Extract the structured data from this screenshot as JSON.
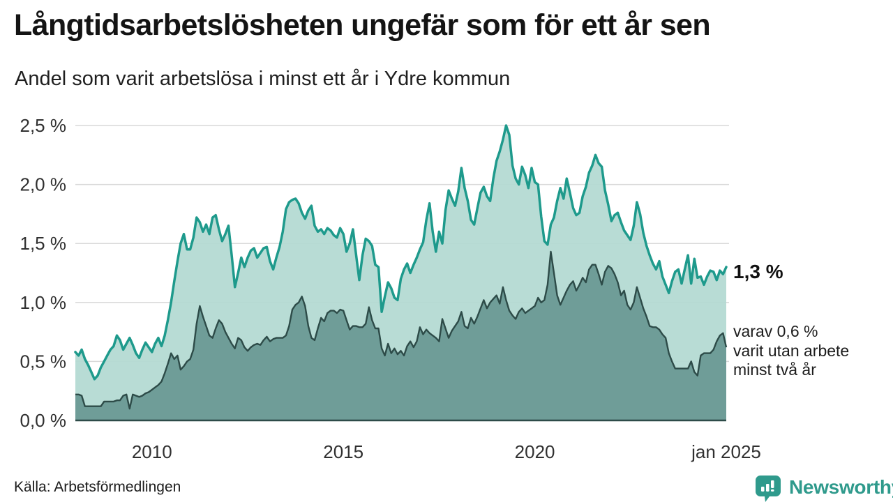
{
  "header": {
    "title": "Långtidsarbetslösheten ungefär som för ett år sen",
    "subtitle": "Andel som varit arbetslösa i minst ett år i Ydre kommun"
  },
  "annotations": {
    "value_main": "1,3 %",
    "detail_line1": "varav 0,6 %",
    "detail_line2": "varit utan arbete",
    "detail_line3": "minst två år"
  },
  "footer": {
    "source": "Källa: Arbetsförmedlingen",
    "brand": "Newsworthy"
  },
  "colors": {
    "line_total": "#1e9a8c",
    "fill_total": "#b4dad3",
    "fill_two_years": "#6c9b96",
    "stroke_two_years": "#2d4b48",
    "gridline": "#d9d9d9",
    "axis_text": "#303030",
    "brand_teal": "#2f9a8c"
  },
  "chart_data": {
    "type": "area",
    "title": "Långtidsarbetslösheten ungefär som för ett år sen",
    "subtitle": "Andel som varit arbetslösa i minst ett år i Ydre kommun",
    "unit": "%",
    "grid": true,
    "legend_position": "none",
    "x_range": [
      2008.0,
      2025.0
    ],
    "x_step_months": 1,
    "ylim": [
      0,
      2.6
    ],
    "yticks": [
      {
        "v": 0.0,
        "label": "0,0 %"
      },
      {
        "v": 0.5,
        "label": "0,5 %"
      },
      {
        "v": 1.0,
        "label": "1,0 %"
      },
      {
        "v": 1.5,
        "label": "1,5 %"
      },
      {
        "v": 2.0,
        "label": "2,0 %"
      },
      {
        "v": 2.5,
        "label": "2,5 %"
      }
    ],
    "xticks": [
      {
        "t": 2010,
        "label": "2010"
      },
      {
        "t": 2015,
        "label": "2015"
      },
      {
        "t": 2020,
        "label": "2020"
      },
      {
        "t": 2025,
        "label": "jan 2025"
      }
    ],
    "last_values": {
      "minst_ett_ar": 1.3,
      "minst_tva_ar": 0.6
    },
    "series": [
      {
        "name": "Arbetslösa minst ett år",
        "role": "total",
        "values": [
          0.58,
          0.55,
          0.6,
          0.52,
          0.47,
          0.41,
          0.35,
          0.38,
          0.45,
          0.5,
          0.55,
          0.6,
          0.63,
          0.72,
          0.68,
          0.6,
          0.65,
          0.7,
          0.64,
          0.57,
          0.53,
          0.6,
          0.66,
          0.62,
          0.58,
          0.65,
          0.7,
          0.63,
          0.72,
          0.85,
          1.0,
          1.18,
          1.35,
          1.5,
          1.58,
          1.45,
          1.45,
          1.55,
          1.72,
          1.68,
          1.6,
          1.66,
          1.58,
          1.72,
          1.74,
          1.62,
          1.52,
          1.58,
          1.65,
          1.4,
          1.13,
          1.25,
          1.38,
          1.3,
          1.38,
          1.44,
          1.46,
          1.38,
          1.42,
          1.46,
          1.47,
          1.35,
          1.28,
          1.38,
          1.47,
          1.6,
          1.79,
          1.85,
          1.87,
          1.88,
          1.84,
          1.76,
          1.71,
          1.78,
          1.82,
          1.65,
          1.6,
          1.62,
          1.58,
          1.63,
          1.61,
          1.57,
          1.55,
          1.63,
          1.58,
          1.43,
          1.5,
          1.62,
          1.4,
          1.19,
          1.4,
          1.54,
          1.52,
          1.48,
          1.32,
          1.3,
          0.92,
          1.05,
          1.17,
          1.12,
          1.04,
          1.02,
          1.2,
          1.28,
          1.33,
          1.25,
          1.32,
          1.38,
          1.45,
          1.51,
          1.7,
          1.84,
          1.6,
          1.43,
          1.6,
          1.5,
          1.78,
          1.95,
          1.88,
          1.82,
          1.94,
          2.14,
          1.97,
          1.86,
          1.7,
          1.66,
          1.8,
          1.93,
          1.98,
          1.9,
          1.86,
          2.05,
          2.2,
          2.28,
          2.38,
          2.5,
          2.42,
          2.16,
          2.05,
          2.0,
          2.15,
          2.08,
          1.97,
          2.14,
          2.02,
          2.0,
          1.73,
          1.52,
          1.49,
          1.66,
          1.72,
          1.86,
          1.97,
          1.88,
          2.05,
          1.93,
          1.8,
          1.74,
          1.76,
          1.9,
          1.98,
          2.1,
          2.16,
          2.25,
          2.18,
          2.15,
          1.95,
          1.83,
          1.69,
          1.74,
          1.76,
          1.68,
          1.61,
          1.57,
          1.53,
          1.65,
          1.85,
          1.75,
          1.59,
          1.48,
          1.4,
          1.33,
          1.28,
          1.35,
          1.22,
          1.15,
          1.08,
          1.18,
          1.26,
          1.28,
          1.16,
          1.28,
          1.4,
          1.16,
          1.37,
          1.21,
          1.22,
          1.15,
          1.22,
          1.27,
          1.26,
          1.19,
          1.27,
          1.24,
          1.3
        ]
      },
      {
        "name": "varav utan arbete minst två år",
        "role": "subset",
        "values": [
          0.22,
          0.22,
          0.21,
          0.12,
          0.12,
          0.12,
          0.12,
          0.12,
          0.12,
          0.16,
          0.16,
          0.16,
          0.16,
          0.17,
          0.17,
          0.21,
          0.22,
          0.1,
          0.22,
          0.21,
          0.2,
          0.21,
          0.23,
          0.24,
          0.26,
          0.28,
          0.3,
          0.33,
          0.4,
          0.48,
          0.57,
          0.52,
          0.55,
          0.43,
          0.46,
          0.5,
          0.52,
          0.6,
          0.82,
          0.97,
          0.88,
          0.8,
          0.72,
          0.7,
          0.78,
          0.85,
          0.82,
          0.75,
          0.7,
          0.65,
          0.61,
          0.7,
          0.68,
          0.62,
          0.59,
          0.62,
          0.64,
          0.65,
          0.64,
          0.68,
          0.71,
          0.67,
          0.69,
          0.7,
          0.7,
          0.7,
          0.72,
          0.8,
          0.94,
          0.98,
          1.0,
          1.05,
          0.97,
          0.8,
          0.7,
          0.68,
          0.78,
          0.87,
          0.84,
          0.91,
          0.93,
          0.93,
          0.91,
          0.94,
          0.93,
          0.85,
          0.77,
          0.8,
          0.8,
          0.79,
          0.79,
          0.82,
          0.96,
          0.85,
          0.78,
          0.78,
          0.61,
          0.55,
          0.65,
          0.57,
          0.61,
          0.56,
          0.59,
          0.55,
          0.63,
          0.67,
          0.62,
          0.67,
          0.79,
          0.73,
          0.77,
          0.74,
          0.72,
          0.7,
          0.67,
          0.86,
          0.78,
          0.7,
          0.76,
          0.8,
          0.84,
          0.92,
          0.8,
          0.78,
          0.87,
          0.82,
          0.88,
          0.95,
          1.02,
          0.95,
          1.0,
          1.03,
          1.06,
          0.99,
          1.13,
          1.02,
          0.93,
          0.89,
          0.86,
          0.92,
          0.95,
          0.91,
          0.93,
          0.95,
          0.97,
          1.04,
          1.0,
          1.02,
          1.15,
          1.43,
          1.25,
          1.06,
          0.98,
          1.04,
          1.1,
          1.15,
          1.18,
          1.1,
          1.15,
          1.21,
          1.17,
          1.28,
          1.32,
          1.32,
          1.24,
          1.15,
          1.26,
          1.31,
          1.29,
          1.24,
          1.17,
          1.06,
          1.1,
          0.98,
          0.94,
          1.0,
          1.13,
          1.04,
          0.95,
          0.88,
          0.8,
          0.79,
          0.79,
          0.77,
          0.73,
          0.7,
          0.57,
          0.5,
          0.44,
          0.44,
          0.44,
          0.44,
          0.44,
          0.5,
          0.41,
          0.38,
          0.55,
          0.57,
          0.57,
          0.57,
          0.6,
          0.67,
          0.72,
          0.74,
          0.62
        ]
      }
    ]
  }
}
